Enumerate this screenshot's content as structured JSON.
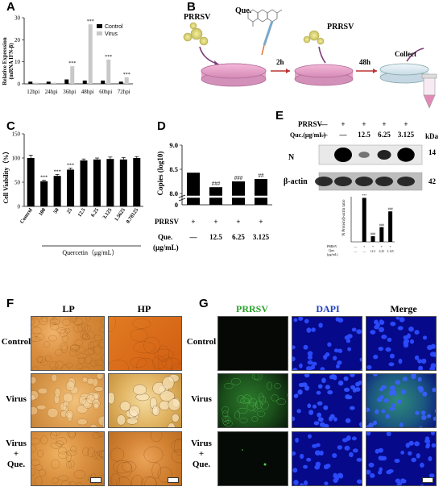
{
  "panels": {
    "A": {
      "label": "A",
      "ylabel": "Relative Expression\n(mRNA IFN-β)",
      "legend": [
        "Control",
        "Virus"
      ],
      "ticks_y": [
        "0",
        "10",
        "20",
        "30"
      ],
      "sig": "***"
    },
    "B": {
      "label": "B",
      "virus": "PRRSV",
      "drug": "Que.",
      "step1": "2h",
      "step2": "48h",
      "collect": "Collect"
    },
    "C": {
      "label": "C",
      "ylabel": "Cell Viability（%）",
      "xlabel": "Quercetin（μg/mL）",
      "ticks_y": [
        "0",
        "50",
        "100",
        "150"
      ],
      "sig": "***"
    },
    "D": {
      "label": "D",
      "ylabel": "Copies (log10)",
      "ticks_y": [
        "8.0",
        "8.5",
        "9.0",
        "0"
      ],
      "row1": "PRRSV",
      "row2": "Que.",
      "row2b": "(μg/mL)",
      "plus": "+",
      "sig": [
        "###",
        "###",
        "##"
      ],
      "doses": [
        "12.5",
        "6.25",
        "3.125"
      ]
    },
    "E": {
      "label": "E",
      "row1": "PRRSV",
      "row2": "Quc.(μg/mL)",
      "kda": "kDa",
      "minus": "—",
      "plus": "+",
      "doses": [
        "12.5",
        "6.25",
        "3.125"
      ],
      "bands": [
        "N",
        "β-actin"
      ],
      "sizes": [
        "14",
        "42"
      ],
      "ratio_ylabel": "N Protein/β-actin ratio",
      "ratio_sig": [
        "***",
        "###",
        "###",
        "###"
      ],
      "ratio_row1": "PRRSV",
      "ratio_row2": "Que.\n(μg/mL)"
    },
    "F": {
      "label": "F",
      "cols": [
        "LP",
        "HP"
      ],
      "rows": [
        "Control",
        "Virus",
        "Virus\n+\nQue."
      ]
    },
    "G": {
      "label": "G",
      "cols": [
        "PRRSV",
        "DAPI",
        "Merge"
      ],
      "rows": [
        "Control",
        "Virus",
        "Virus\n+\nQue."
      ]
    }
  },
  "chart_data": [
    {
      "type": "bar",
      "id": "A",
      "categories": [
        "12hpi",
        "24hpi",
        "36hpi",
        "48hpi",
        "60hpi",
        "72hpi"
      ],
      "series": [
        {
          "name": "Control",
          "values": [
            1,
            1,
            2,
            1.5,
            1.5,
            1
          ]
        },
        {
          "name": "Virus",
          "values": [
            0.5,
            0.5,
            8,
            27,
            11,
            3
          ]
        }
      ],
      "significance": [
        "",
        "",
        "***",
        "***",
        "***",
        "***"
      ],
      "ylim": [
        0,
        30
      ],
      "colors": {
        "Control": "#000000",
        "Virus": "#c8c8c8"
      }
    },
    {
      "type": "bar",
      "id": "C",
      "categories": [
        "Control",
        "100",
        "50",
        "25",
        "12.5",
        "6.25",
        "3.125",
        "1.5625",
        "0.78125"
      ],
      "values": [
        100,
        52,
        63,
        76,
        95,
        97,
        98,
        97,
        100
      ],
      "errors": [
        6,
        2,
        3,
        3,
        3,
        3,
        4,
        4,
        3
      ],
      "significance": [
        "",
        "***",
        "***",
        "***",
        "",
        "",
        "",
        "",
        ""
      ],
      "ylim": [
        0,
        150
      ]
    },
    {
      "type": "bar",
      "id": "D",
      "categories": [
        "PRRSV",
        "12.5",
        "6.25",
        "3.125"
      ],
      "values": [
        8.43,
        8.13,
        8.25,
        8.3
      ],
      "significance": [
        "",
        "###",
        "###",
        "##"
      ],
      "ylim": [
        8.0,
        9.0
      ]
    },
    {
      "type": "bar",
      "id": "E-ratio",
      "categories": [
        "-",
        "PRRSV",
        "12.5",
        "6.25",
        "3.125"
      ],
      "values": [
        0,
        7.8,
        1.0,
        2.6,
        5.4
      ],
      "significance": [
        "",
        "***",
        "###",
        "###",
        "###"
      ]
    }
  ]
}
